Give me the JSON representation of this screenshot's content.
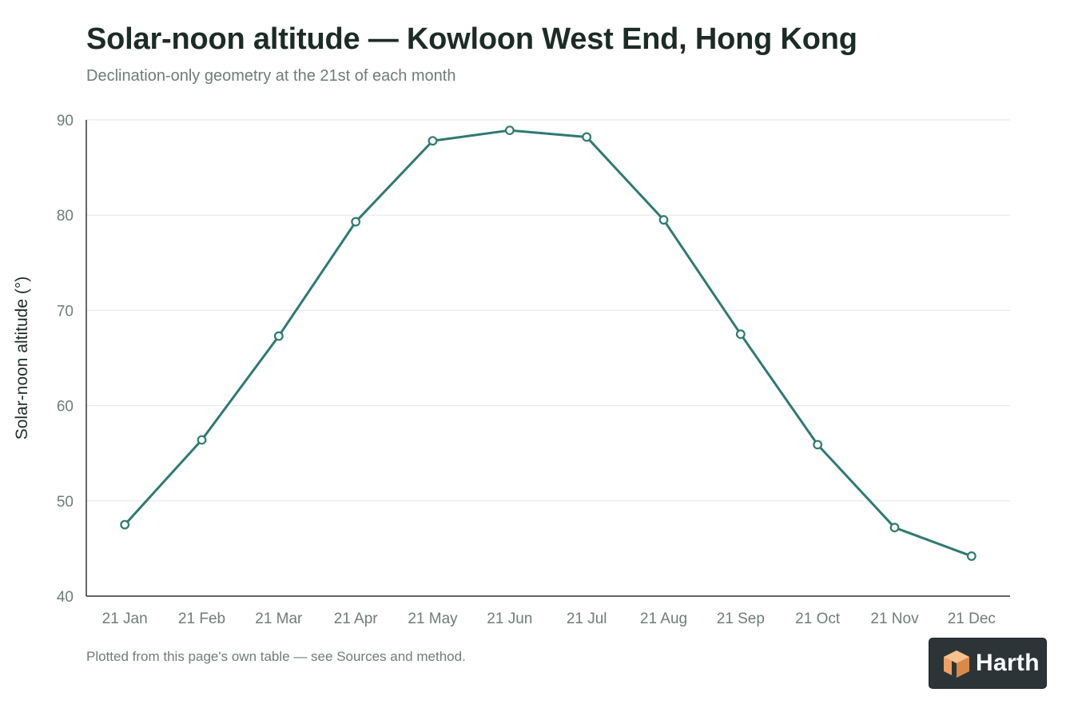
{
  "header": {
    "title": "Solar-noon altitude — Kowloon West End, Hong Kong",
    "subtitle": "Declination-only geometry at the 21st of each month"
  },
  "footer": {
    "note": "Plotted from this page's own table — see Sources and method."
  },
  "logo": {
    "text": "Harth"
  },
  "colors": {
    "series": "#2e7a70",
    "grid": "#e6e6e6",
    "axis": "#333333",
    "tick_text": "#6f7c78",
    "logo_bg": "#2c3438",
    "logo_orange": "#f0a060"
  },
  "chart_data": {
    "type": "line",
    "title": "Solar-noon altitude — Kowloon West End, Hong Kong",
    "subtitle": "Declination-only geometry at the 21st of each month",
    "xlabel": "",
    "ylabel": "Solar-noon altitude (°)",
    "ylim": [
      40,
      90
    ],
    "yticks": [
      40,
      50,
      60,
      70,
      80,
      90
    ],
    "grid": true,
    "legend": "none",
    "categories": [
      "21 Jan",
      "21 Feb",
      "21 Mar",
      "21 Apr",
      "21 May",
      "21 Jun",
      "21 Jul",
      "21 Aug",
      "21 Sep",
      "21 Oct",
      "21 Nov",
      "21 Dec"
    ],
    "series": [
      {
        "values": [
          47.5,
          56.4,
          67.3,
          79.3,
          87.8,
          88.9,
          88.2,
          79.5,
          67.5,
          55.9,
          47.2,
          44.2
        ]
      }
    ]
  }
}
